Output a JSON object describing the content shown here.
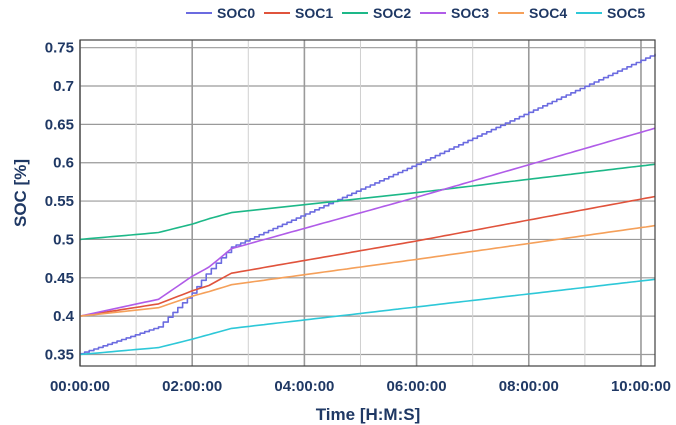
{
  "chart_data": {
    "type": "line",
    "title": "",
    "xlabel": "Time [H:M:S]",
    "ylabel": "SOC [%]",
    "x_unit": "seconds",
    "xlim": [
      0,
      36900
    ],
    "ylim": [
      0.335,
      0.76
    ],
    "x_ticks": [
      {
        "value": 0,
        "label": "00:00:00"
      },
      {
        "value": 7200,
        "label": "02:00:00"
      },
      {
        "value": 14400,
        "label": "04:00:00"
      },
      {
        "value": 21600,
        "label": "06:00:00"
      },
      {
        "value": 28800,
        "label": "08:00:00"
      },
      {
        "value": 36000,
        "label": "10:00:00"
      }
    ],
    "x_minor_ticks": [
      3600,
      10800,
      18000,
      25200,
      32400
    ],
    "y_ticks": [
      {
        "value": 0.35,
        "label": "0.35"
      },
      {
        "value": 0.4,
        "label": "0.4"
      },
      {
        "value": 0.45,
        "label": "0.45"
      },
      {
        "value": 0.5,
        "label": "0.5"
      },
      {
        "value": 0.55,
        "label": "0.55"
      },
      {
        "value": 0.6,
        "label": "0.6"
      },
      {
        "value": 0.65,
        "label": "0.65"
      },
      {
        "value": 0.7,
        "label": "0.7"
      },
      {
        "value": 0.75,
        "label": "0.75"
      }
    ],
    "grid": true,
    "legend_position": "top",
    "series": [
      {
        "name": "SOC0",
        "color": "#6b6be0",
        "stepped": true,
        "points": [
          [
            0,
            0.351
          ],
          [
            5040,
            0.386
          ],
          [
            7200,
            0.43
          ],
          [
            8100,
            0.455
          ],
          [
            9720,
            0.49
          ],
          [
            21600,
            0.598
          ],
          [
            36900,
            0.742
          ]
        ]
      },
      {
        "name": "SOC1",
        "color": "#e0533c",
        "stepped": false,
        "points": [
          [
            0,
            0.4
          ],
          [
            5040,
            0.416
          ],
          [
            7200,
            0.433
          ],
          [
            8280,
            0.44
          ],
          [
            9720,
            0.456
          ],
          [
            21600,
            0.498
          ],
          [
            36900,
            0.556
          ]
        ]
      },
      {
        "name": "SOC2",
        "color": "#1db888",
        "stepped": false,
        "points": [
          [
            0,
            0.5
          ],
          [
            5040,
            0.509
          ],
          [
            7200,
            0.52
          ],
          [
            8280,
            0.527
          ],
          [
            9720,
            0.535
          ],
          [
            21600,
            0.561
          ],
          [
            36900,
            0.598
          ]
        ]
      },
      {
        "name": "SOC3",
        "color": "#b05ce8",
        "stepped": false,
        "points": [
          [
            0,
            0.4
          ],
          [
            5040,
            0.422
          ],
          [
            7200,
            0.452
          ],
          [
            8280,
            0.464
          ],
          [
            9720,
            0.488
          ],
          [
            21600,
            0.555
          ],
          [
            36900,
            0.645
          ]
        ]
      },
      {
        "name": "SOC4",
        "color": "#f5a05a",
        "stepped": false,
        "points": [
          [
            0,
            0.4
          ],
          [
            5040,
            0.411
          ],
          [
            7200,
            0.426
          ],
          [
            8280,
            0.432
          ],
          [
            9720,
            0.441
          ],
          [
            21600,
            0.474
          ],
          [
            36900,
            0.518
          ]
        ]
      },
      {
        "name": "SOC5",
        "color": "#2ec8d8",
        "stepped": false,
        "points": [
          [
            0,
            0.35
          ],
          [
            5040,
            0.359
          ],
          [
            7200,
            0.37
          ],
          [
            8280,
            0.376
          ],
          [
            9720,
            0.384
          ],
          [
            21600,
            0.412
          ],
          [
            36900,
            0.448
          ]
        ]
      }
    ]
  }
}
